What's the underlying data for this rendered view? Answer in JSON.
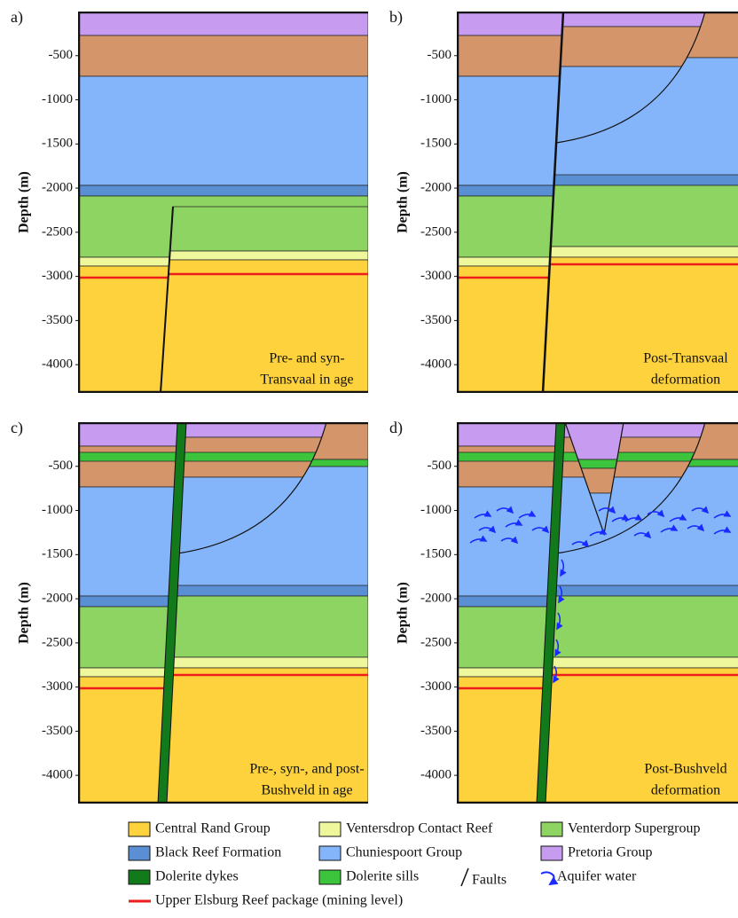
{
  "panels": [
    {
      "label": "a)",
      "caption": [
        "Pre- and syn-",
        "Transvaal in age"
      ]
    },
    {
      "label": "b)",
      "caption": [
        "Post-Transvaal",
        "deformation"
      ]
    },
    {
      "label": "c)",
      "caption": [
        "Pre-, syn-, and post-",
        "Bushveld in age"
      ]
    },
    {
      "label": "d)",
      "caption": [
        "Post-Bushveld",
        "deformation"
      ]
    }
  ],
  "depth_axis": {
    "label": "Depth (m)",
    "range": [
      0,
      -4320
    ],
    "ticks": [
      -500,
      -1000,
      -1500,
      -2000,
      -2500,
      -3000,
      -3500,
      -4000
    ]
  },
  "legend": {
    "items": [
      {
        "label": "Central Rand Group",
        "color": "#fdd23c"
      },
      {
        "label": "Ventersdrop Contact Reef",
        "color": "#eef79c"
      },
      {
        "label": "Venterdorp Supergroup",
        "color": "#8ed463"
      },
      {
        "label": "Black Reef Formation",
        "color": "#5a8fd4"
      },
      {
        "label": "Chuniespoort Group",
        "color": "#84b5fb"
      },
      {
        "label": "Pretoria Group",
        "color": "#c69bf0"
      },
      {
        "label": "Dolerite dykes",
        "color": "#137a1c"
      },
      {
        "label": "Dolerite sills",
        "color": "#3cc43c"
      },
      {
        "label": "Faults",
        "color": "#111111"
      },
      {
        "label": "Aquifer water",
        "color": "#1a2bff"
      },
      {
        "label": "Upper Elsburg Reef package (mining level)",
        "color": "#ee1c1c"
      }
    ]
  }
}
